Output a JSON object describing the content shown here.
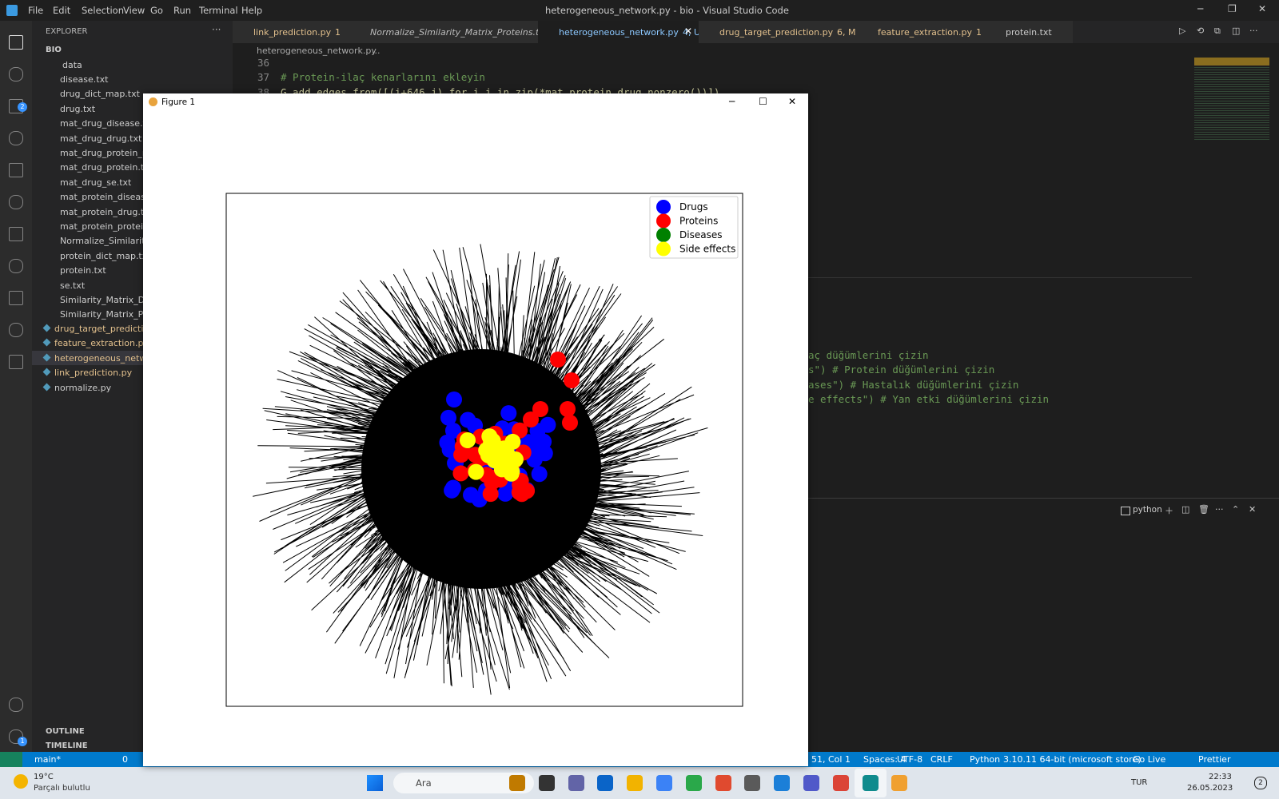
{
  "window": {
    "title": "heterogeneous_network.py - bio - Visual Studio Code",
    "menu": [
      "File",
      "Edit",
      "Selection",
      "View",
      "Go",
      "Run",
      "Terminal",
      "Help"
    ]
  },
  "activity_badges": [
    "2",
    "1"
  ],
  "tabs": [
    {
      "label": "link_prediction.py",
      "badge": "1",
      "color": "#e2c08d"
    },
    {
      "label": "Normalize_Similarity_Matrix_Proteins.txt",
      "color": "#bbbbbb"
    },
    {
      "label": "heterogeneous_network.py",
      "badge": "4, U",
      "color": "#8cc8ff"
    },
    {
      "label": "drug_target_prediction.py",
      "badge": "6, M",
      "color": "#e2c08d"
    },
    {
      "label": "feature_extraction.py",
      "badge": "1",
      "color": "#e2c08d"
    },
    {
      "label": "protein.txt",
      "color": "#cccccc"
    }
  ],
  "breadcrumb": [
    "heterogeneous_network.py",
    "..."
  ],
  "explorer": {
    "title": "EXPLORER",
    "root": "BIO",
    "folder": "data",
    "files": [
      "disease.txt",
      "drug_dict_map.txt",
      "drug.txt",
      "mat_drug_disease.txt",
      "mat_drug_drug.txt",
      "mat_drug_protein_re",
      "mat_drug_protein.txt",
      "mat_drug_se.txt",
      "mat_protein_disease.t",
      "mat_protein_drug.txt",
      "mat_protein_protein.t",
      "Normalize_Similarity_",
      "protein_dict_map.txt",
      "protein.txt",
      "se.txt",
      "Similarity_Matrix_Drug",
      "Similarity_Matrix_Prot"
    ],
    "scripts": [
      "drug_target_prediction",
      "feature_extraction.py",
      "heterogeneous_networ",
      "link_prediction.py",
      "normalize.py"
    ],
    "outline": "OUTLINE",
    "timeline": "TIMELINE"
  },
  "editor": {
    "line_numbers": [
      36,
      37,
      38
    ],
    "code": [
      "# Protein-ilaç kenarlarını ekleyin",
      "G.add_edges_from([(i+646,j) for i,j in zip(*mat_protein_drug.nonzero())])"
    ],
    "visible_code": [
      "aç düğümlerini çizin",
      "s\") # Protein düğümlerini çizin",
      "ases\") # Hastalık düğümlerini çizin",
      "e effects\") # Yan etki düğümlerini çizin"
    ]
  },
  "figure": {
    "title": "Figure 1",
    "legend": [
      {
        "label": "Drugs",
        "color": "#0000ff"
      },
      {
        "label": "Proteins",
        "color": "#ff0000"
      },
      {
        "label": "Diseases",
        "color": "#008000"
      },
      {
        "label": "Side effects",
        "color": "#ffff00"
      }
    ]
  },
  "terminal": {
    "shell": "python"
  },
  "status": {
    "branch": "main*",
    "problems": "0",
    "position": "51, Col 1",
    "items": [
      "Spaces: 4",
      "UTF-8",
      "CRLF",
      "Python",
      "3.10.11 64-bit (microsoft store)",
      "Go Live",
      "Prettier"
    ]
  },
  "taskbar": {
    "temperature": "19°C",
    "weather": "Parçalı bulutlu",
    "search": "Ara",
    "language": "TUR",
    "time": "22:33",
    "date": "26.05.2023",
    "notifications": "2"
  }
}
